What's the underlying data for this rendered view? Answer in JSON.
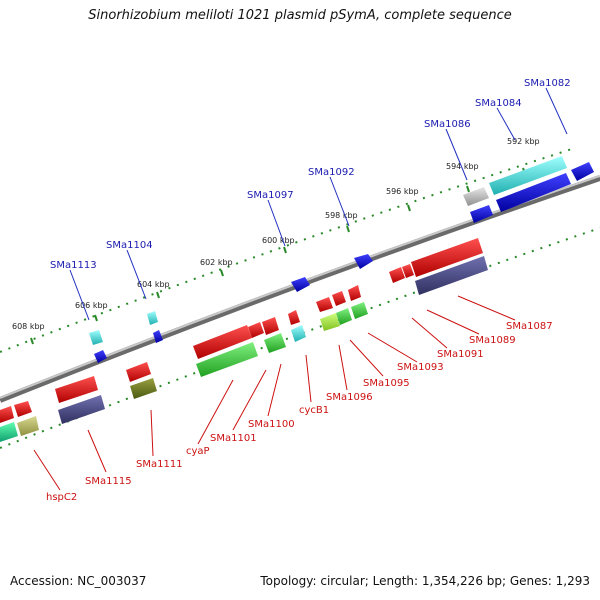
{
  "title": "Sinorhizobium meliloti 1021 plasmid pSymA, complete sequence",
  "footer": {
    "accession": "Accession: NC_003037",
    "summary": "Topology: circular; Length: 1,354,226 bp; Genes: 1,293"
  },
  "ticks": [
    "608 kbp",
    "606 kbp",
    "604 kbp",
    "602 kbp",
    "600 kbp",
    "598 kbp",
    "596 kbp",
    "594 kbp",
    "592 kbp"
  ],
  "upper_genes": [
    "SMa1113",
    "SMa1104",
    "SMa1097",
    "SMa1092",
    "SMa1086",
    "SMa1084",
    "SMa1082"
  ],
  "lower_genes": [
    "hspC2",
    "SMa1115",
    "SMa1111",
    "cyaP",
    "SMa1101",
    "SMa1100",
    "cycB1",
    "SMa1096",
    "SMa1095",
    "SMa1093",
    "SMa1091",
    "SMa1089",
    "SMa1087"
  ],
  "colors": {
    "backbone": "#808080",
    "tick_dots": "#2a8a2a",
    "red": "#e01010",
    "blue": "#1010e0",
    "cyan": "#30d0d0",
    "green": "#40c040",
    "olive": "#6a7a1a",
    "purple": "#40407a",
    "light_green": "#a0e040",
    "khaki": "#b0b060",
    "gray": "#bbbbbb"
  }
}
